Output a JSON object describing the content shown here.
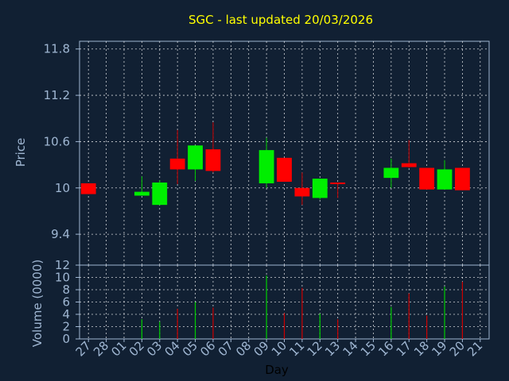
{
  "colors": {
    "background": "#112033",
    "axis": "#9fb6d2",
    "title": "#ffff00",
    "up": "#00ee00",
    "down": "#ff0000",
    "wick_up": "#00cc00",
    "wick_down": "#cc0000"
  },
  "chart_data": [
    {
      "type": "candlestick",
      "title": "SGC - last updated 20/03/2026",
      "xlabel": "",
      "ylabel": "Price",
      "ylim": [
        9.0,
        11.9
      ],
      "yticks": [
        "11.8",
        "11.2",
        "10.6",
        "10",
        "9.4"
      ],
      "ytick_values": [
        11.8,
        11.2,
        10.6,
        10.0,
        9.4
      ],
      "grid": true,
      "categories": [
        "27",
        "28",
        "01",
        "02",
        "03",
        "04",
        "05",
        "06",
        "07",
        "08",
        "09",
        "10",
        "11",
        "12",
        "13",
        "14",
        "15",
        "16",
        "17",
        "18",
        "19",
        "20",
        "21"
      ],
      "candles": [
        {
          "x": "27",
          "open": 10.06,
          "high": 10.06,
          "low": 9.92,
          "close": 9.92
        },
        {
          "x": "02",
          "open": 9.9,
          "high": 10.15,
          "low": 9.9,
          "close": 9.95
        },
        {
          "x": "03",
          "open": 9.78,
          "high": 10.1,
          "low": 9.78,
          "close": 10.07
        },
        {
          "x": "04",
          "open": 10.38,
          "high": 10.75,
          "low": 10.05,
          "close": 10.24
        },
        {
          "x": "05",
          "open": 10.24,
          "high": 10.55,
          "low": 10.09,
          "close": 10.55
        },
        {
          "x": "06",
          "open": 10.5,
          "high": 10.85,
          "low": 10.2,
          "close": 10.22
        },
        {
          "x": "09",
          "open": 10.06,
          "high": 10.65,
          "low": 10.0,
          "close": 10.49
        },
        {
          "x": "10",
          "open": 10.39,
          "high": 10.39,
          "low": 10.08,
          "close": 10.08
        },
        {
          "x": "11",
          "open": 10.0,
          "high": 10.2,
          "low": 9.78,
          "close": 9.89
        },
        {
          "x": "12",
          "open": 9.87,
          "high": 10.12,
          "low": 9.85,
          "close": 10.12
        },
        {
          "x": "13",
          "open": 10.07,
          "high": 10.07,
          "low": 9.87,
          "close": 10.05
        },
        {
          "x": "16",
          "open": 10.13,
          "high": 10.38,
          "low": 10.0,
          "close": 10.26
        },
        {
          "x": "17",
          "open": 10.32,
          "high": 10.62,
          "low": 10.26,
          "close": 10.27
        },
        {
          "x": "18",
          "open": 10.26,
          "high": 10.26,
          "low": 9.98,
          "close": 9.98
        },
        {
          "x": "19",
          "open": 9.98,
          "high": 10.36,
          "low": 9.98,
          "close": 10.24
        },
        {
          "x": "20",
          "open": 10.26,
          "high": 10.26,
          "low": 9.97,
          "close": 9.97
        }
      ]
    },
    {
      "type": "bar",
      "title": "",
      "xlabel": "Day",
      "ylabel": "Volume (0000)",
      "ylim": [
        0,
        12
      ],
      "yticks": [
        "12",
        "10",
        "8",
        "6",
        "4",
        "2",
        "0"
      ],
      "ytick_values": [
        12,
        10,
        8,
        6,
        4,
        2,
        0
      ],
      "grid": true,
      "categories": [
        "27",
        "28",
        "01",
        "02",
        "03",
        "04",
        "05",
        "06",
        "07",
        "08",
        "09",
        "10",
        "11",
        "12",
        "13",
        "14",
        "15",
        "16",
        "17",
        "18",
        "19",
        "20",
        "21"
      ],
      "values": [
        {
          "x": "02",
          "value": 3.2,
          "direction": "up"
        },
        {
          "x": "03",
          "value": 2.8,
          "direction": "up"
        },
        {
          "x": "04",
          "value": 4.9,
          "direction": "down"
        },
        {
          "x": "05",
          "value": 6.0,
          "direction": "up"
        },
        {
          "x": "06",
          "value": 5.1,
          "direction": "down"
        },
        {
          "x": "09",
          "value": 10.3,
          "direction": "up"
        },
        {
          "x": "10",
          "value": 4.2,
          "direction": "down"
        },
        {
          "x": "11",
          "value": 8.3,
          "direction": "down"
        },
        {
          "x": "12",
          "value": 4.1,
          "direction": "up"
        },
        {
          "x": "13",
          "value": 3.2,
          "direction": "down"
        },
        {
          "x": "16",
          "value": 5.2,
          "direction": "up"
        },
        {
          "x": "17",
          "value": 7.4,
          "direction": "down"
        },
        {
          "x": "18",
          "value": 3.8,
          "direction": "down"
        },
        {
          "x": "19",
          "value": 8.5,
          "direction": "up"
        },
        {
          "x": "20",
          "value": 9.3,
          "direction": "down"
        }
      ]
    }
  ]
}
